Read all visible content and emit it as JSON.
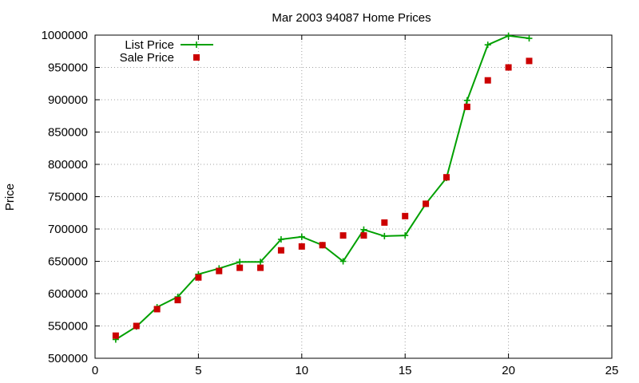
{
  "chart_data": {
    "type": "line",
    "title": "Mar 2003 94087 Home Prices",
    "xlabel": "",
    "ylabel": "Price",
    "xlim": [
      0,
      25
    ],
    "ylim": [
      500000,
      1000000
    ],
    "x_ticks": [
      0,
      5,
      10,
      15,
      20,
      25
    ],
    "y_ticks": [
      500000,
      550000,
      600000,
      650000,
      700000,
      750000,
      800000,
      850000,
      900000,
      950000,
      1000000
    ],
    "grid": true,
    "legend_position": "top-left",
    "series": [
      {
        "name": "List Price",
        "style": "linespoints",
        "marker": "plus",
        "color": "#00a000",
        "x": [
          1,
          2,
          3,
          4,
          5,
          6,
          7,
          8,
          9,
          10,
          11,
          12,
          13,
          14,
          15,
          16,
          17,
          18,
          19,
          20,
          21
        ],
        "y": [
          529000,
          549000,
          579000,
          595000,
          630000,
          639000,
          649000,
          649000,
          684000,
          688000,
          675000,
          650000,
          699000,
          689000,
          690000,
          739000,
          779000,
          899000,
          985000,
          999000,
          995000
        ]
      },
      {
        "name": "Sale Price",
        "style": "points",
        "marker": "square",
        "color": "#cc0000",
        "x": [
          1,
          2,
          3,
          4,
          5,
          6,
          7,
          8,
          9,
          10,
          11,
          12,
          13,
          14,
          15,
          16,
          17,
          18,
          19,
          20,
          21
        ],
        "y": [
          535000,
          550000,
          576000,
          590000,
          625000,
          635000,
          640000,
          640000,
          667000,
          673000,
          675000,
          690000,
          690000,
          710000,
          720000,
          739000,
          780000,
          889000,
          930000,
          950000,
          960000
        ]
      }
    ]
  }
}
